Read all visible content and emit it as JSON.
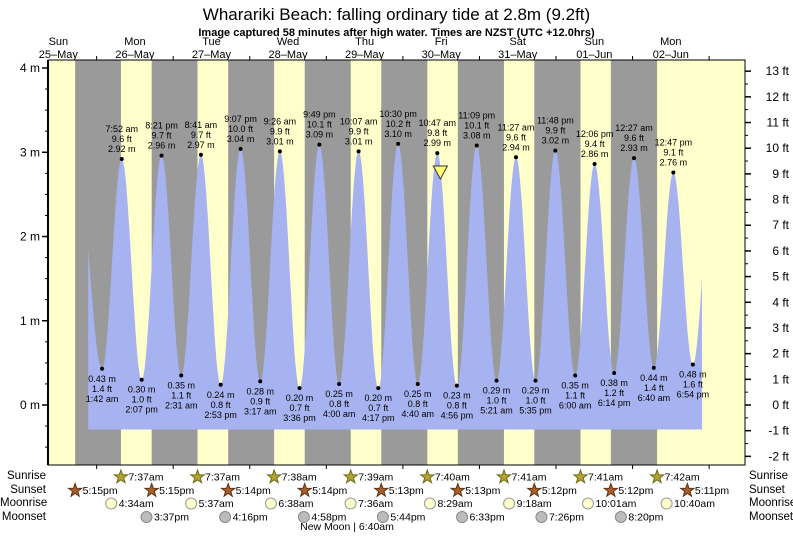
{
  "header": {
    "title": "Wharariki Beach: falling  ordinary tide at 2.8m (9.2ft)",
    "subtitle": "Image captured 58 minutes after high water. Times are NZST (UTC +12.0hrs)"
  },
  "colors": {
    "day_band": "#ffffcc",
    "night_band": "#9a9a9a",
    "tide_fill": "#a7b3f0",
    "date_text": "#ee1111",
    "marker_fill": "#ffff70",
    "sunrise_star": "#b5a433",
    "sunrise_star_stroke": "#6e6a10",
    "sunset_star": "#a85f2e",
    "sunset_star_stroke": "#5d3214",
    "moonrise_fill": "#ffffcc",
    "moonrise_stroke": "#999999",
    "moonset_fill": "#bcbcbc",
    "moonset_stroke": "#8a8a8a"
  },
  "chart_data": {
    "type": "area",
    "days": [
      {
        "weekday": "Sun",
        "date": "25–May"
      },
      {
        "weekday": "Mon",
        "date": "26–May"
      },
      {
        "weekday": "Tue",
        "date": "27–May"
      },
      {
        "weekday": "Wed",
        "date": "28–May"
      },
      {
        "weekday": "Thu",
        "date": "29–May"
      },
      {
        "weekday": "Fri",
        "date": "30–May"
      },
      {
        "weekday": "Sat",
        "date": "31–May"
      },
      {
        "weekday": "Sun",
        "date": "01–Jun"
      },
      {
        "weekday": "Mon",
        "date": "02–Jun"
      }
    ],
    "y_axis_left": {
      "unit": "m",
      "major_values": [
        4,
        3,
        2,
        1,
        0
      ],
      "tick_labels": [
        "4 m",
        "3 m",
        "2 m",
        "1 m",
        "0 m"
      ],
      "minor_step": 0.25
    },
    "y_axis_right": {
      "unit": "ft",
      "major_values": [
        13,
        12,
        11,
        10,
        9,
        8,
        7,
        6,
        5,
        4,
        3,
        2,
        1,
        0,
        -1,
        -2
      ],
      "tick_labels": [
        "13 ft",
        "12 ft",
        "11 ft",
        "10 ft",
        "9 ft",
        "8 ft",
        "7 ft",
        "6 ft",
        "5 ft",
        "4 ft",
        "3 ft",
        "2 ft",
        "1 ft",
        "0 ft",
        "-1 ft",
        "-2 ft"
      ],
      "minor_step": 0.5
    },
    "highs": [
      {
        "time": "7:52 am",
        "ft": "9.6 ft",
        "m": "2.92 m",
        "d": 1.32778,
        "height_m": 2.92
      },
      {
        "time": "8:21 pm",
        "ft": "9.7 ft",
        "m": "2.96 m",
        "d": 1.84792,
        "height_m": 2.96
      },
      {
        "time": "8:41 am",
        "ft": "9.7 ft",
        "m": "2.97 m",
        "d": 2.36181,
        "height_m": 2.97
      },
      {
        "time": "9:07 pm",
        "ft": "10.0 ft",
        "m": "3.04 m",
        "d": 2.87986,
        "height_m": 3.04
      },
      {
        "time": "9:26 am",
        "ft": "9.9 ft",
        "m": "3.01 m",
        "d": 3.39306,
        "height_m": 3.01
      },
      {
        "time": "9:49 pm",
        "ft": "10.1 ft",
        "m": "3.09 m",
        "d": 3.90903,
        "height_m": 3.09
      },
      {
        "time": "10:07 am",
        "ft": "9.9 ft",
        "m": "3.01 m",
        "d": 4.42153,
        "height_m": 3.01
      },
      {
        "time": "10:30 pm",
        "ft": "10.2 ft",
        "m": "3.10 m",
        "d": 4.9375,
        "height_m": 3.1
      },
      {
        "time": "10:47 am",
        "ft": "9.8 ft",
        "m": "2.99 m",
        "d": 5.44931,
        "height_m": 2.99
      },
      {
        "time": "11:09 pm",
        "ft": "10.1 ft",
        "m": "3.08 m",
        "d": 5.96458,
        "height_m": 3.08
      },
      {
        "time": "11:27 am",
        "ft": "9.6 ft",
        "m": "2.94 m",
        "d": 6.47708,
        "height_m": 2.94
      },
      {
        "time": "11:48 pm",
        "ft": "9.9 ft",
        "m": "3.02 m",
        "d": 6.99167,
        "height_m": 3.02
      },
      {
        "time": "12:06 pm",
        "ft": "9.4 ft",
        "m": "2.86 m",
        "d": 7.50417,
        "height_m": 2.86
      },
      {
        "time": "12:27 am",
        "ft": "9.6 ft",
        "m": "2.93 m",
        "d": 8.01875,
        "height_m": 2.93
      },
      {
        "time": "12:47 pm",
        "ft": "9.1 ft",
        "m": "2.76 m",
        "d": 8.53264,
        "height_m": 2.76
      }
    ],
    "lows": [
      {
        "m": "0.43 m",
        "ft": "1.4 ft",
        "time": "1:42 am",
        "d": 1.07083,
        "height_m": 0.43
      },
      {
        "m": "0.30 m",
        "ft": "1.0 ft",
        "time": "2:07 pm",
        "d": 1.58819,
        "height_m": 0.3
      },
      {
        "m": "0.35 m",
        "ft": "1.1 ft",
        "time": "2:31 am",
        "d": 2.10486,
        "height_m": 0.35
      },
      {
        "m": "0.24 m",
        "ft": "0.8 ft",
        "time": "2:53 pm",
        "d": 2.62014,
        "height_m": 0.24
      },
      {
        "m": "0.28 m",
        "ft": "0.9 ft",
        "time": "3:17 am",
        "d": 3.13681,
        "height_m": 0.28
      },
      {
        "m": "0.20 m",
        "ft": "0.7 ft",
        "time": "3:36 pm",
        "d": 3.65,
        "height_m": 0.2
      },
      {
        "m": "0.25 m",
        "ft": "0.8 ft",
        "time": "4:00 am",
        "d": 4.16667,
        "height_m": 0.25
      },
      {
        "m": "0.20 m",
        "ft": "0.7 ft",
        "time": "4:17 pm",
        "d": 4.67847,
        "height_m": 0.2
      },
      {
        "m": "0.25 m",
        "ft": "0.8 ft",
        "time": "4:40 am",
        "d": 5.19444,
        "height_m": 0.25
      },
      {
        "m": "0.23 m",
        "ft": "0.8 ft",
        "time": "4:56 pm",
        "d": 5.70556,
        "height_m": 0.23
      },
      {
        "m": "0.29 m",
        "ft": "1.0 ft",
        "time": "5:21 am",
        "d": 6.22292,
        "height_m": 0.29
      },
      {
        "m": "0.29 m",
        "ft": "1.0 ft",
        "time": "5:35 pm",
        "d": 6.73264,
        "height_m": 0.29
      },
      {
        "m": "0.35 m",
        "ft": "1.1 ft",
        "time": "6:00 am",
        "d": 7.25,
        "height_m": 0.35
      },
      {
        "m": "0.38 m",
        "ft": "1.2 ft",
        "time": "6:14 pm",
        "d": 7.75972,
        "height_m": 0.38
      },
      {
        "m": "0.44 m",
        "ft": "1.4 ft",
        "time": "6:40 am",
        "d": 8.27778,
        "height_m": 0.44
      },
      {
        "m": "0.48 m",
        "ft": "1.6 ft",
        "time": "6:54 pm",
        "d": 8.7875,
        "height_m": 0.48
      }
    ],
    "curve": {
      "start_d": 0.89,
      "end_d": 8.907,
      "bottom_m": -0.291,
      "pre_high": {
        "d": 0.74,
        "height_m": 2.9
      },
      "post_high": {
        "d": 9.05,
        "height_m": 2.9
      }
    },
    "marker_d": 5.4896
  },
  "astro": {
    "row_labels": [
      "Sunrise",
      "Sunset",
      "Moonrise",
      "Moonset"
    ],
    "sunrise": [
      {
        "time": "7:37am",
        "d": 1.31736
      },
      {
        "time": "7:37am",
        "d": 2.31736
      },
      {
        "time": "7:38am",
        "d": 3.31806
      },
      {
        "time": "7:39am",
        "d": 4.31875
      },
      {
        "time": "7:40am",
        "d": 5.31944
      },
      {
        "time": "7:41am",
        "d": 6.32014
      },
      {
        "time": "7:41am",
        "d": 7.32014
      },
      {
        "time": "7:42am",
        "d": 8.32083
      }
    ],
    "sunset": [
      {
        "time": "5:15pm",
        "d": 0.71875
      },
      {
        "time": "5:15pm",
        "d": 1.71875
      },
      {
        "time": "5:14pm",
        "d": 2.71806
      },
      {
        "time": "5:14pm",
        "d": 3.71806
      },
      {
        "time": "5:13pm",
        "d": 4.71736
      },
      {
        "time": "5:13pm",
        "d": 5.71736
      },
      {
        "time": "5:12pm",
        "d": 6.71667
      },
      {
        "time": "5:12pm",
        "d": 7.71667
      },
      {
        "time": "5:11pm",
        "d": 8.71597
      }
    ],
    "moonrise": [
      {
        "time": "4:34am",
        "d": 1.19028
      },
      {
        "time": "5:37am",
        "d": 2.23403
      },
      {
        "time": "6:38am",
        "d": 3.27639
      },
      {
        "time": "7:36am",
        "d": 4.31667
      },
      {
        "time": "8:29am",
        "d": 5.35347
      },
      {
        "time": "9:18am",
        "d": 6.3875
      },
      {
        "time": "10:01am",
        "d": 7.41736
      },
      {
        "time": "10:40am",
        "d": 8.44444
      }
    ],
    "moonset": [
      {
        "time": "3:37pm",
        "d": 1.65069
      },
      {
        "time": "4:16pm",
        "d": 2.67778
      },
      {
        "time": "4:58pm",
        "d": 3.70694
      },
      {
        "time": "5:44pm",
        "d": 4.73889
      },
      {
        "time": "6:33pm",
        "d": 5.77292
      },
      {
        "time": "7:26pm",
        "d": 6.80972
      },
      {
        "time": "8:20pm",
        "d": 7.84722
      }
    ],
    "new_moon": "New Moon | 6:40am"
  }
}
